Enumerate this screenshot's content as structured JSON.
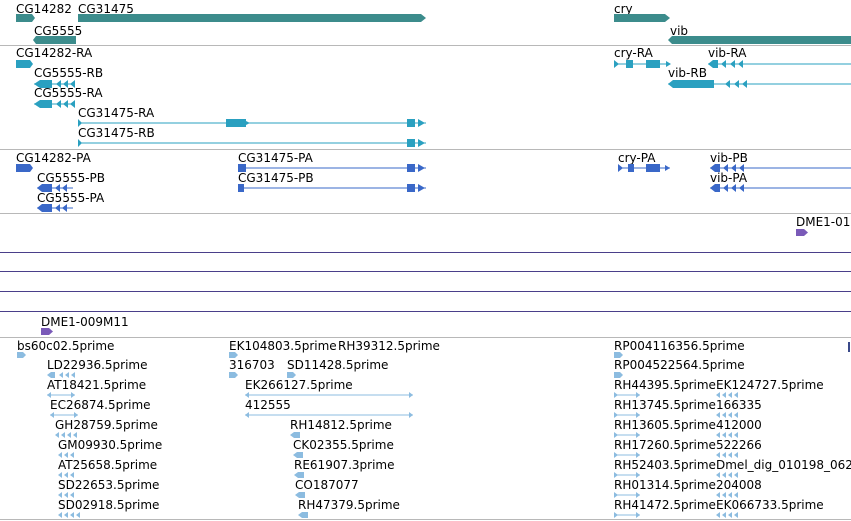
{
  "browser": {
    "name": "genome-browser-track-view"
  },
  "colors": {
    "gene": "#3c8c8c",
    "transcript": "#2aa0c0",
    "protein": "#3a68c8",
    "marker": "#7a5ab8",
    "est": "#8cbce0",
    "divider": "#b8b8b8",
    "track_line": "#4a3f8a"
  },
  "genes": [
    {
      "label": "CG14282"
    },
    {
      "label": "CG31475"
    },
    {
      "label": "CG5555"
    },
    {
      "label": "cry"
    },
    {
      "label": "vib"
    }
  ],
  "transcripts": [
    {
      "label": "CG14282-RA"
    },
    {
      "label": "CG5555-RB"
    },
    {
      "label": "CG5555-RA"
    },
    {
      "label": "CG31475-RA"
    },
    {
      "label": "CG31475-RB"
    },
    {
      "label": "cry-RA"
    },
    {
      "label": "vib-RA"
    },
    {
      "label": "vib-RB"
    }
  ],
  "proteins": [
    {
      "label": "CG14282-PA"
    },
    {
      "label": "CG5555-PB"
    },
    {
      "label": "CG5555-PA"
    },
    {
      "label": "CG31475-PA"
    },
    {
      "label": "CG31475-PB"
    },
    {
      "label": "cry-PA"
    },
    {
      "label": "vib-PB"
    },
    {
      "label": "vib-PA"
    }
  ],
  "markers": [
    {
      "label": "DME1-01"
    },
    {
      "label": "DME1-009M11"
    }
  ],
  "ests": {
    "col1": [
      "bs60c02.5prime",
      "LD22936.5prime",
      "AT18421.5prime",
      "EC26874.5prime",
      "GH28759.5prime",
      "GM09930.5prime",
      "AT25658.5prime",
      "SD22653.5prime",
      "SD02918.5prime"
    ],
    "col2": [
      "EK104803.5prime",
      "316703",
      "EK266127.5prime",
      "412555"
    ],
    "col3": [
      "RH39312.5prime",
      "SD11428.5prime",
      "RH14812.5prime",
      "CK02355.5prime",
      "RE61907.3prime",
      "CO187077",
      "RH47379.5prime"
    ],
    "col4": [
      "RP004116356.5prime",
      "RP004522564.5prime",
      "RH44395.5prime",
      "RH13745.5prime",
      "RH13605.5prime",
      "RH17260.5prime",
      "RH52403.5prime",
      "RH01314.5prime",
      "RH41472.5prime"
    ],
    "col5": [
      "EK124727.5prime",
      "166335",
      "412000",
      "522266",
      "Dmel_dig_010198_062",
      "204008",
      "EK066733.5prime"
    ]
  }
}
